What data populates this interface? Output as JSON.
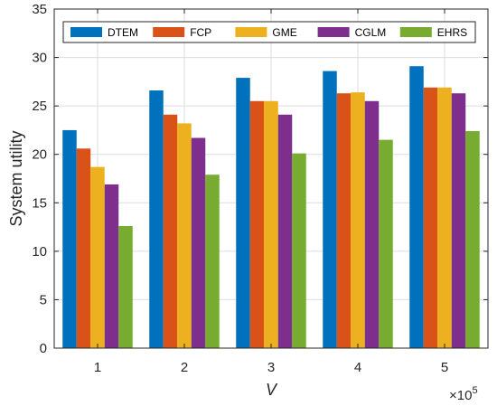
{
  "chart_data": {
    "type": "bar",
    "categories": [
      "1",
      "2",
      "3",
      "4",
      "5"
    ],
    "series": [
      {
        "name": "DTEM",
        "color": "#0072BD",
        "values": [
          22.5,
          26.6,
          27.9,
          28.6,
          29.1
        ]
      },
      {
        "name": "FCP",
        "color": "#D95319",
        "values": [
          20.6,
          24.1,
          25.5,
          26.3,
          26.9
        ]
      },
      {
        "name": "GME",
        "color": "#EDB120",
        "values": [
          18.7,
          23.2,
          25.5,
          26.4,
          26.9
        ]
      },
      {
        "name": "CGLM",
        "color": "#7E2F8E",
        "values": [
          16.9,
          21.7,
          24.1,
          25.5,
          26.3
        ]
      },
      {
        "name": "EHRS",
        "color": "#77AC30",
        "values": [
          12.6,
          17.9,
          20.1,
          21.5,
          22.4
        ]
      }
    ],
    "title": "",
    "xlabel": "V",
    "ylabel": "System utility",
    "x_exponent_base": "×10",
    "x_exponent_power": "5",
    "ylim": [
      0,
      35
    ],
    "yticks": [
      "0",
      "5",
      "10",
      "15",
      "20",
      "25",
      "30",
      "35"
    ],
    "grid": true,
    "legend_placement": "top, horizontal"
  }
}
